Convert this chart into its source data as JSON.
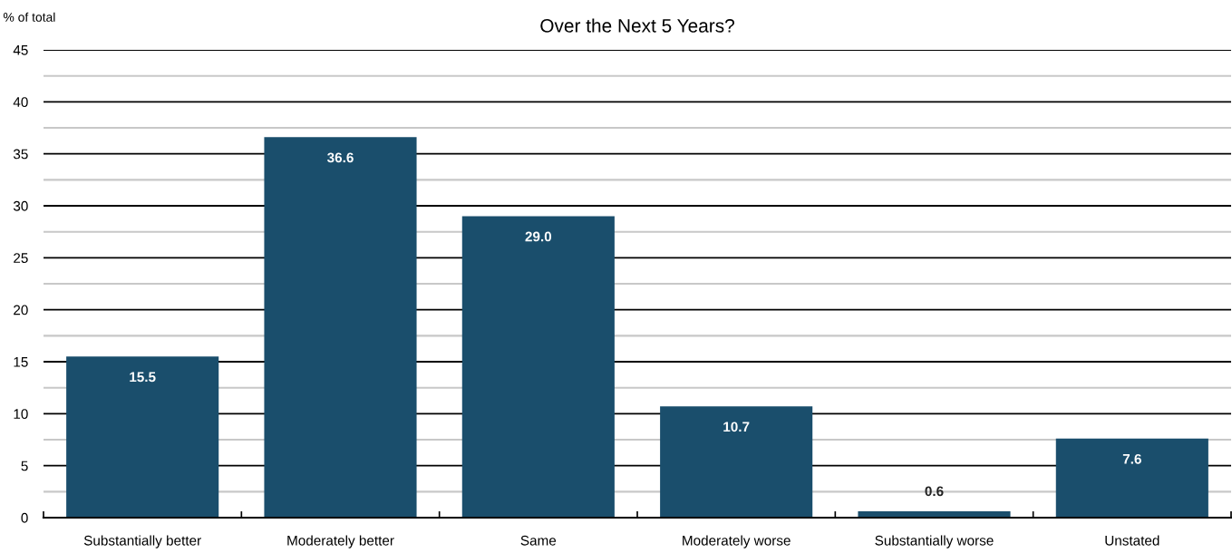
{
  "chart_data": {
    "type": "bar",
    "title": "Over the Next 5 Years?",
    "ylabel": "% of total",
    "categories": [
      "Substantially better",
      "Moderately better",
      "Same",
      "Moderately worse",
      "Substantially worse",
      "Unstated"
    ],
    "values": [
      15.5,
      36.6,
      29.0,
      10.7,
      0.6,
      7.6
    ],
    "value_labels": [
      "15.5",
      "36.6",
      "29.0",
      "10.7",
      "0.6",
      "7.6"
    ],
    "color": "#1a4e6c",
    "ylim": [
      0,
      45
    ],
    "yticks": [
      0,
      {
        "value": 2.5,
        "label": null
      },
      5,
      {
        "value": 7.5,
        "label": null
      },
      10,
      {
        "value": 12.5,
        "label": null
      },
      15,
      {
        "value": 17.5,
        "label": null
      },
      20,
      {
        "value": 22.5,
        "label": null
      },
      25,
      {
        "value": 27.5,
        "label": null
      },
      30,
      {
        "value": 32.5,
        "label": null
      },
      35,
      {
        "value": 37.5,
        "label": null
      },
      40,
      {
        "value": 42.5,
        "label": null
      },
      45
    ],
    "grid": "y"
  }
}
